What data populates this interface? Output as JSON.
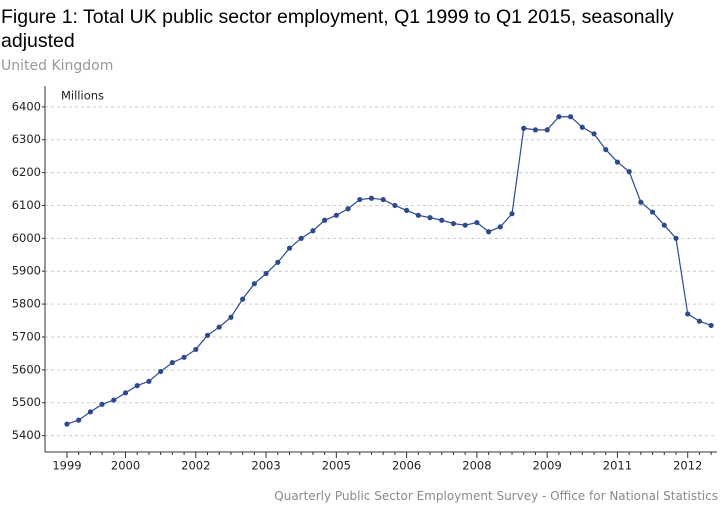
{
  "chart_data": {
    "type": "line",
    "title": "Figure 1: Total UK public sector employment, Q1 1999 to Q1 2015, seasonally adjusted",
    "subtitle": "United Kingdom",
    "y_label": "Millions",
    "source": "Quarterly Public Sector Employment Survey - Office for National Statistics",
    "categories": [
      "1999",
      null,
      null,
      null,
      null,
      "2000",
      null,
      null,
      null,
      null,
      null,
      "2002",
      null,
      null,
      null,
      null,
      null,
      "2003",
      null,
      null,
      null,
      null,
      null,
      "2005",
      null,
      null,
      null,
      null,
      null,
      "2006",
      null,
      null,
      null,
      null,
      null,
      "2008",
      null,
      null,
      null,
      null,
      null,
      "2009",
      null,
      null,
      null,
      null,
      null,
      "2011",
      null,
      null,
      null,
      null,
      null,
      "2012",
      null,
      null
    ],
    "series": [
      {
        "name": "Total UK public sector employment",
        "color": "#2e4a8f",
        "values": [
          5435,
          5447,
          5472,
          5495,
          5508,
          5530,
          5552,
          5565,
          5595,
          5622,
          5638,
          5662,
          5705,
          5730,
          5760,
          5815,
          5862,
          5893,
          5927,
          5970,
          6000,
          6023,
          6055,
          6070,
          6090,
          6118,
          6122,
          6118,
          6100,
          6085,
          6070,
          6063,
          6055,
          6045,
          6040,
          6048,
          6020,
          6035,
          6075,
          6335,
          6330,
          6330,
          6370,
          6370,
          6338,
          6318,
          6270,
          6232,
          6203,
          6110,
          6080,
          6040,
          6000,
          5770,
          5748,
          5735
        ]
      }
    ],
    "ylim": [
      5350,
      6430
    ],
    "yticks": [
      5400,
      5500,
      5600,
      5700,
      5800,
      5900,
      6000,
      6100,
      6200,
      6300,
      6400
    ],
    "grid": true
  }
}
